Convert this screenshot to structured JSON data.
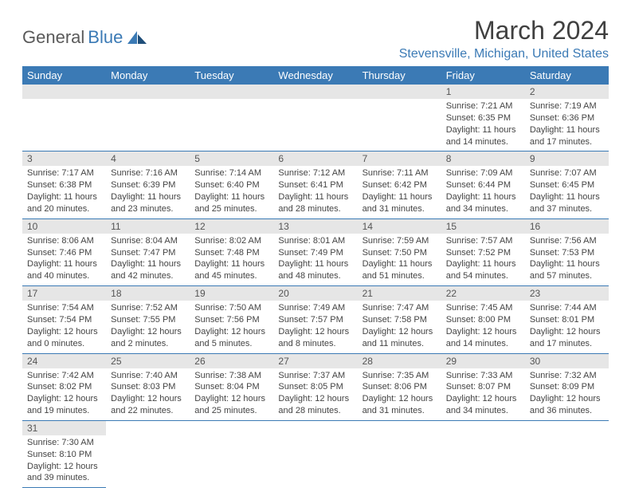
{
  "logo": {
    "text1": "General",
    "text2": "Blue"
  },
  "header": {
    "month": "March 2024",
    "location": "Stevensville, Michigan, United States"
  },
  "colors": {
    "header_bg": "#3b7ab5",
    "daynum_bg": "#e6e6e6",
    "border": "#3b7ab5",
    "text": "#444444",
    "logo_blue": "#3b7ab5"
  },
  "dayNames": [
    "Sunday",
    "Monday",
    "Tuesday",
    "Wednesday",
    "Thursday",
    "Friday",
    "Saturday"
  ],
  "weeks": [
    [
      {
        "num": "",
        "empty": true
      },
      {
        "num": "",
        "empty": true
      },
      {
        "num": "",
        "empty": true
      },
      {
        "num": "",
        "empty": true
      },
      {
        "num": "",
        "empty": true
      },
      {
        "num": "1",
        "sunrise": "7:21 AM",
        "sunset": "6:35 PM",
        "daylight": "11 hours and 14 minutes."
      },
      {
        "num": "2",
        "sunrise": "7:19 AM",
        "sunset": "6:36 PM",
        "daylight": "11 hours and 17 minutes."
      }
    ],
    [
      {
        "num": "3",
        "sunrise": "7:17 AM",
        "sunset": "6:38 PM",
        "daylight": "11 hours and 20 minutes."
      },
      {
        "num": "4",
        "sunrise": "7:16 AM",
        "sunset": "6:39 PM",
        "daylight": "11 hours and 23 minutes."
      },
      {
        "num": "5",
        "sunrise": "7:14 AM",
        "sunset": "6:40 PM",
        "daylight": "11 hours and 25 minutes."
      },
      {
        "num": "6",
        "sunrise": "7:12 AM",
        "sunset": "6:41 PM",
        "daylight": "11 hours and 28 minutes."
      },
      {
        "num": "7",
        "sunrise": "7:11 AM",
        "sunset": "6:42 PM",
        "daylight": "11 hours and 31 minutes."
      },
      {
        "num": "8",
        "sunrise": "7:09 AM",
        "sunset": "6:44 PM",
        "daylight": "11 hours and 34 minutes."
      },
      {
        "num": "9",
        "sunrise": "7:07 AM",
        "sunset": "6:45 PM",
        "daylight": "11 hours and 37 minutes."
      }
    ],
    [
      {
        "num": "10",
        "sunrise": "8:06 AM",
        "sunset": "7:46 PM",
        "daylight": "11 hours and 40 minutes."
      },
      {
        "num": "11",
        "sunrise": "8:04 AM",
        "sunset": "7:47 PM",
        "daylight": "11 hours and 42 minutes."
      },
      {
        "num": "12",
        "sunrise": "8:02 AM",
        "sunset": "7:48 PM",
        "daylight": "11 hours and 45 minutes."
      },
      {
        "num": "13",
        "sunrise": "8:01 AM",
        "sunset": "7:49 PM",
        "daylight": "11 hours and 48 minutes."
      },
      {
        "num": "14",
        "sunrise": "7:59 AM",
        "sunset": "7:50 PM",
        "daylight": "11 hours and 51 minutes."
      },
      {
        "num": "15",
        "sunrise": "7:57 AM",
        "sunset": "7:52 PM",
        "daylight": "11 hours and 54 minutes."
      },
      {
        "num": "16",
        "sunrise": "7:56 AM",
        "sunset": "7:53 PM",
        "daylight": "11 hours and 57 minutes."
      }
    ],
    [
      {
        "num": "17",
        "sunrise": "7:54 AM",
        "sunset": "7:54 PM",
        "daylight": "12 hours and 0 minutes."
      },
      {
        "num": "18",
        "sunrise": "7:52 AM",
        "sunset": "7:55 PM",
        "daylight": "12 hours and 2 minutes."
      },
      {
        "num": "19",
        "sunrise": "7:50 AM",
        "sunset": "7:56 PM",
        "daylight": "12 hours and 5 minutes."
      },
      {
        "num": "20",
        "sunrise": "7:49 AM",
        "sunset": "7:57 PM",
        "daylight": "12 hours and 8 minutes."
      },
      {
        "num": "21",
        "sunrise": "7:47 AM",
        "sunset": "7:58 PM",
        "daylight": "12 hours and 11 minutes."
      },
      {
        "num": "22",
        "sunrise": "7:45 AM",
        "sunset": "8:00 PM",
        "daylight": "12 hours and 14 minutes."
      },
      {
        "num": "23",
        "sunrise": "7:44 AM",
        "sunset": "8:01 PM",
        "daylight": "12 hours and 17 minutes."
      }
    ],
    [
      {
        "num": "24",
        "sunrise": "7:42 AM",
        "sunset": "8:02 PM",
        "daylight": "12 hours and 19 minutes."
      },
      {
        "num": "25",
        "sunrise": "7:40 AM",
        "sunset": "8:03 PM",
        "daylight": "12 hours and 22 minutes."
      },
      {
        "num": "26",
        "sunrise": "7:38 AM",
        "sunset": "8:04 PM",
        "daylight": "12 hours and 25 minutes."
      },
      {
        "num": "27",
        "sunrise": "7:37 AM",
        "sunset": "8:05 PM",
        "daylight": "12 hours and 28 minutes."
      },
      {
        "num": "28",
        "sunrise": "7:35 AM",
        "sunset": "8:06 PM",
        "daylight": "12 hours and 31 minutes."
      },
      {
        "num": "29",
        "sunrise": "7:33 AM",
        "sunset": "8:07 PM",
        "daylight": "12 hours and 34 minutes."
      },
      {
        "num": "30",
        "sunrise": "7:32 AM",
        "sunset": "8:09 PM",
        "daylight": "12 hours and 36 minutes."
      }
    ],
    [
      {
        "num": "31",
        "sunrise": "7:30 AM",
        "sunset": "8:10 PM",
        "daylight": "12 hours and 39 minutes."
      },
      {
        "num": "",
        "empty": true,
        "noborder": true
      },
      {
        "num": "",
        "empty": true,
        "noborder": true
      },
      {
        "num": "",
        "empty": true,
        "noborder": true
      },
      {
        "num": "",
        "empty": true,
        "noborder": true
      },
      {
        "num": "",
        "empty": true,
        "noborder": true
      },
      {
        "num": "",
        "empty": true,
        "noborder": true
      }
    ]
  ],
  "labels": {
    "sunrise": "Sunrise: ",
    "sunset": "Sunset: ",
    "daylight": "Daylight: "
  }
}
